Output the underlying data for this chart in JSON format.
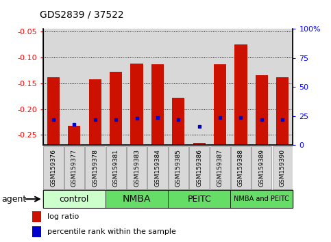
{
  "title": "GDS2839 / 37522",
  "categories": [
    "GSM159376",
    "GSM159377",
    "GSM159378",
    "GSM159381",
    "GSM159383",
    "GSM159384",
    "GSM159385",
    "GSM159386",
    "GSM159387",
    "GSM159388",
    "GSM159389",
    "GSM159390"
  ],
  "log_ratio": [
    -0.138,
    -0.232,
    -0.143,
    -0.128,
    -0.112,
    -0.113,
    -0.178,
    -0.265,
    -0.113,
    -0.075,
    -0.135,
    -0.138
  ],
  "percentile_rank": [
    22,
    18,
    22,
    22,
    23,
    24,
    22,
    16,
    24,
    24,
    22,
    22
  ],
  "bar_color": "#cc1100",
  "dot_color": "#0000cc",
  "ylim_left": [
    -0.27,
    -0.045
  ],
  "ylim_right": [
    0,
    100
  ],
  "yticks_left": [
    -0.25,
    -0.2,
    -0.15,
    -0.1,
    -0.05
  ],
  "yticks_right": [
    0,
    25,
    50,
    75,
    100
  ],
  "agent_groups": [
    {
      "label": "control",
      "start": 0,
      "end": 3,
      "color": "#ccffcc"
    },
    {
      "label": "NMBA",
      "start": 3,
      "end": 6,
      "color": "#66dd66"
    },
    {
      "label": "PEITC",
      "start": 6,
      "end": 9,
      "color": "#66dd66"
    },
    {
      "label": "NMBA and PEITC",
      "start": 9,
      "end": 12,
      "color": "#66dd66"
    }
  ],
  "agent_label": "agent",
  "legend_log_ratio": "log ratio",
  "legend_percentile": "percentile rank within the sample",
  "xtick_bg": "#d8d8d8",
  "plot_bg": "#ffffff"
}
